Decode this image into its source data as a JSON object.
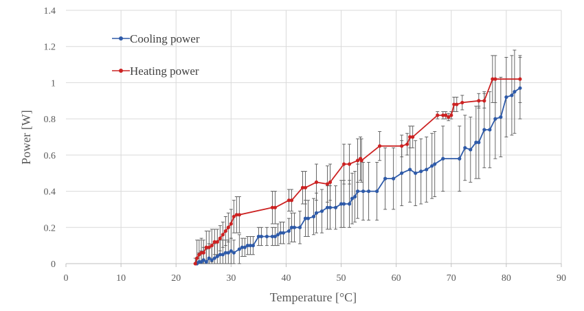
{
  "chart_data": {
    "type": "scatter",
    "xlabel": "Temperature [°C]",
    "ylabel": "Power [W]",
    "xlim": [
      0,
      90
    ],
    "ylim": [
      0,
      1.4
    ],
    "xticks": [
      "0",
      "10",
      "20",
      "30",
      "40",
      "50",
      "60",
      "70",
      "80",
      "90"
    ],
    "yticks": [
      "0",
      "0.2",
      "0.4",
      "0.6",
      "0.8",
      "1",
      "1.2",
      "1.4"
    ],
    "grid": true,
    "legend_position": "top-left",
    "series": [
      {
        "name": "Cooling power",
        "color": "#2e5aa8",
        "x": [
          23.8,
          24.2,
          24.6,
          25.0,
          25.5,
          26.0,
          26.5,
          27.0,
          27.5,
          28.0,
          28.5,
          29.0,
          29.5,
          30.0,
          30.5,
          31.5,
          32.0,
          32.5,
          33.0,
          33.5,
          34.0,
          35.0,
          35.5,
          36.5,
          37.5,
          38.0,
          38.5,
          39.0,
          39.5,
          40.5,
          41.0,
          41.5,
          42.5,
          43.5,
          44.0,
          45.0,
          45.5,
          46.5,
          47.5,
          48.0,
          49.0,
          50.0,
          50.5,
          51.5,
          52.0,
          52.5,
          53.0,
          54.0,
          55.0,
          56.5,
          58.0,
          59.5,
          61.0,
          62.5,
          63.5,
          64.5,
          65.5,
          66.5,
          67.0,
          68.5,
          71.5,
          72.5,
          73.5,
          74.5,
          75.0,
          76.0,
          77.0,
          78.0,
          79.0,
          80.0,
          81.0,
          81.5,
          82.5
        ],
        "y": [
          0.0,
          0.01,
          0.01,
          0.02,
          0.01,
          0.03,
          0.02,
          0.03,
          0.04,
          0.05,
          0.05,
          0.06,
          0.06,
          0.07,
          0.06,
          0.08,
          0.09,
          0.09,
          0.1,
          0.1,
          0.1,
          0.15,
          0.15,
          0.15,
          0.15,
          0.15,
          0.16,
          0.17,
          0.17,
          0.18,
          0.2,
          0.2,
          0.2,
          0.25,
          0.25,
          0.26,
          0.28,
          0.29,
          0.31,
          0.31,
          0.31,
          0.33,
          0.33,
          0.33,
          0.36,
          0.37,
          0.4,
          0.4,
          0.4,
          0.4,
          0.47,
          0.47,
          0.5,
          0.52,
          0.5,
          0.51,
          0.52,
          0.54,
          0.55,
          0.58,
          0.58,
          0.64,
          0.63,
          0.67,
          0.67,
          0.74,
          0.74,
          0.8,
          0.81,
          0.92,
          0.93,
          0.95,
          0.97
        ],
        "err": [
          0.01,
          0.05,
          0.06,
          0.07,
          0.07,
          0.08,
          0.08,
          0.08,
          0.08,
          0.08,
          0.08,
          0.07,
          0.07,
          0.07,
          0.07,
          0.08,
          0.05,
          0.05,
          0.05,
          0.05,
          0.05,
          0.05,
          0.05,
          0.05,
          0.05,
          0.05,
          0.06,
          0.06,
          0.06,
          0.07,
          0.08,
          0.08,
          0.09,
          0.1,
          0.1,
          0.1,
          0.11,
          0.12,
          0.12,
          0.12,
          0.12,
          0.13,
          0.13,
          0.13,
          0.14,
          0.14,
          0.15,
          0.16,
          0.16,
          0.16,
          0.17,
          0.17,
          0.18,
          0.18,
          0.18,
          0.18,
          0.18,
          0.18,
          0.18,
          0.18,
          0.18,
          0.18,
          0.18,
          0.2,
          0.2,
          0.21,
          0.21,
          0.22,
          0.22,
          0.22,
          0.22,
          0.23,
          0.17
        ]
      },
      {
        "name": "Heating power",
        "color": "#cc2222",
        "x": [
          23.5,
          23.8,
          24.2,
          24.6,
          25.0,
          25.5,
          26.0,
          26.5,
          27.0,
          27.5,
          28.0,
          28.5,
          29.0,
          29.5,
          30.0,
          30.5,
          31.0,
          31.5,
          37.5,
          38.0,
          40.5,
          41.0,
          43.0,
          43.5,
          45.5,
          47.5,
          48.0,
          50.5,
          51.5,
          53.0,
          53.5,
          53.7,
          57.0,
          61.0,
          62.0,
          62.5,
          63.0,
          67.5,
          68.5,
          69.0,
          69.5,
          70.0,
          70.5,
          71.0,
          72.0,
          75.0,
          76.0,
          77.5,
          78.0,
          82.5
        ],
        "y": [
          0.0,
          0.03,
          0.05,
          0.06,
          0.06,
          0.09,
          0.09,
          0.1,
          0.12,
          0.12,
          0.14,
          0.16,
          0.18,
          0.2,
          0.22,
          0.26,
          0.27,
          0.27,
          0.31,
          0.31,
          0.35,
          0.35,
          0.42,
          0.42,
          0.45,
          0.44,
          0.45,
          0.55,
          0.55,
          0.57,
          0.58,
          0.57,
          0.65,
          0.65,
          0.66,
          0.7,
          0.7,
          0.82,
          0.82,
          0.82,
          0.81,
          0.82,
          0.88,
          0.88,
          0.89,
          0.9,
          0.9,
          1.02,
          1.02,
          1.02
        ],
        "err": [
          0.03,
          0.1,
          0.08,
          0.08,
          0.07,
          0.09,
          0.09,
          0.09,
          0.07,
          0.07,
          0.07,
          0.07,
          0.08,
          0.08,
          0.08,
          0.09,
          0.1,
          0.1,
          0.09,
          0.09,
          0.06,
          0.06,
          0.09,
          0.09,
          0.1,
          0.1,
          0.1,
          0.11,
          0.11,
          0.12,
          0.12,
          0.12,
          0.08,
          0.06,
          0.06,
          0.06,
          0.06,
          0.02,
          0.02,
          0.02,
          0.02,
          0.02,
          0.04,
          0.04,
          0.04,
          0.04,
          0.04,
          0.13,
          0.13,
          0.13
        ]
      }
    ]
  }
}
